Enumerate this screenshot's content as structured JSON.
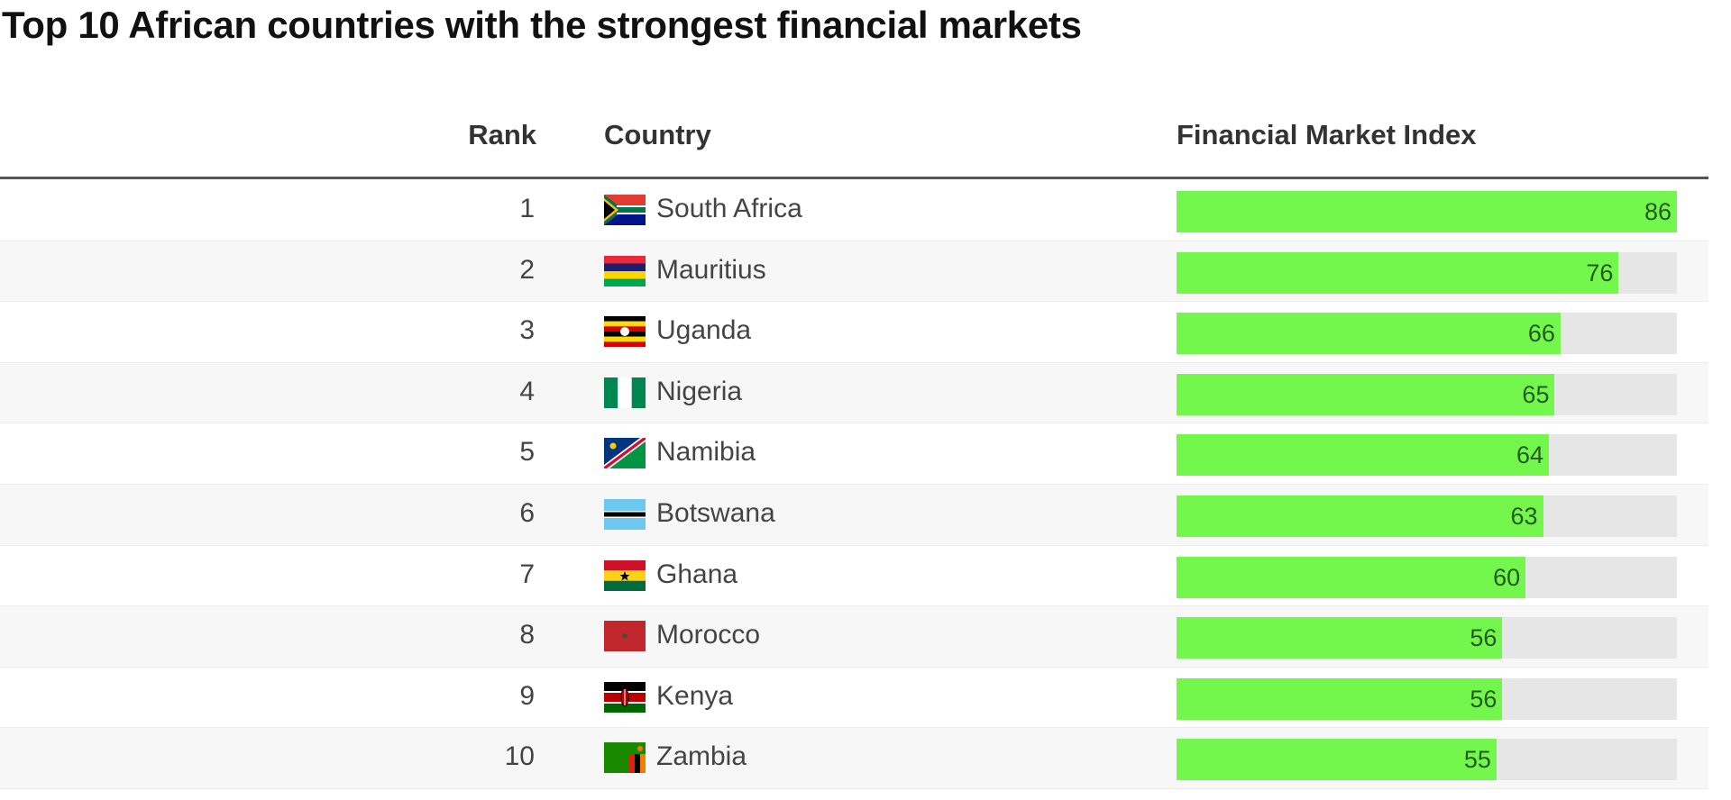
{
  "title": "Top 10 African countries with the strongest financial markets",
  "columns": {
    "rank": "Rank",
    "country": "Country",
    "index": "Financial Market Index"
  },
  "colors": {
    "bar": "#74f74c",
    "track": "#e6e6e6",
    "value_text": "#245a24"
  },
  "rows": [
    {
      "rank": "1",
      "country": "South Africa",
      "flag": "flag-south-africa-icon",
      "value": "86"
    },
    {
      "rank": "2",
      "country": "Mauritius",
      "flag": "flag-mauritius-icon",
      "value": "76"
    },
    {
      "rank": "3",
      "country": "Uganda",
      "flag": "flag-uganda-icon",
      "value": "66"
    },
    {
      "rank": "4",
      "country": "Nigeria",
      "flag": "flag-nigeria-icon",
      "value": "65"
    },
    {
      "rank": "5",
      "country": "Namibia",
      "flag": "flag-namibia-icon",
      "value": "64"
    },
    {
      "rank": "6",
      "country": "Botswana",
      "flag": "flag-botswana-icon",
      "value": "63"
    },
    {
      "rank": "7",
      "country": "Ghana",
      "flag": "flag-ghana-icon",
      "value": "60"
    },
    {
      "rank": "8",
      "country": "Morocco",
      "flag": "flag-morocco-icon",
      "value": "56"
    },
    {
      "rank": "9",
      "country": "Kenya",
      "flag": "flag-kenya-icon",
      "value": "56"
    },
    {
      "rank": "10",
      "country": "Zambia",
      "flag": "flag-zambia-icon",
      "value": "55"
    }
  ],
  "chart_data": {
    "type": "bar",
    "title": "Top 10 African countries with the strongest financial markets",
    "categories": [
      "South Africa",
      "Mauritius",
      "Uganda",
      "Nigeria",
      "Namibia",
      "Botswana",
      "Ghana",
      "Morocco",
      "Kenya",
      "Zambia"
    ],
    "values": [
      86,
      76,
      66,
      65,
      64,
      63,
      60,
      56,
      56,
      55
    ],
    "xlabel": "",
    "ylabel": "Financial Market Index",
    "orientation": "horizontal",
    "ylim": [
      0,
      86
    ]
  }
}
